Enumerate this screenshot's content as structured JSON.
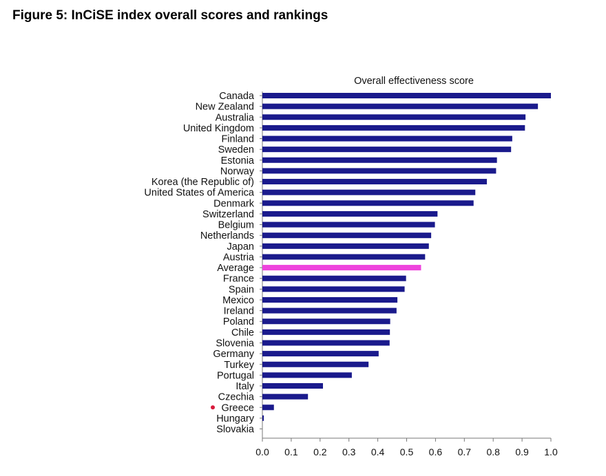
{
  "figure_title": "Figure 5: InCiSE index overall scores and rankings",
  "chart_data": {
    "type": "bar",
    "orientation": "horizontal",
    "title": "Overall effectiveness score",
    "xlabel": "",
    "ylabel": "",
    "xlim": [
      0,
      1.0
    ],
    "xticks": [
      "0.0",
      "0.1",
      "0.2",
      "0.3",
      "0.4",
      "0.5",
      "0.6",
      "0.7",
      "0.8",
      "0.9",
      "1.0"
    ],
    "grid": false,
    "categories": [
      "Canada",
      "New Zealand",
      "Australia",
      "United Kingdom",
      "Finland",
      "Sweden",
      "Estonia",
      "Norway",
      "Korea (the Republic of)",
      "United States of America",
      "Denmark",
      "Switzerland",
      "Belgium",
      "Netherlands",
      "Japan",
      "Austria",
      "Average",
      "France",
      "Spain",
      "Mexico",
      "Ireland",
      "Poland",
      "Chile",
      "Slovenia",
      "Germany",
      "Turkey",
      "Portugal",
      "Italy",
      "Czechia",
      "Greece",
      "Hungary",
      "Slovakia"
    ],
    "values": [
      1.0,
      0.955,
      0.912,
      0.91,
      0.866,
      0.862,
      0.813,
      0.81,
      0.778,
      0.738,
      0.732,
      0.607,
      0.598,
      0.585,
      0.577,
      0.564,
      0.55,
      0.498,
      0.493,
      0.468,
      0.465,
      0.443,
      0.442,
      0.441,
      0.403,
      0.368,
      0.31,
      0.21,
      0.158,
      0.04,
      0.005,
      0.0
    ],
    "colors": {
      "bar": "#1a1a8c",
      "average": "#ee44dd",
      "greece_marker": "#d81b3c"
    },
    "highlight": {
      "Average": "average"
    },
    "marker": {
      "Greece": "dot"
    }
  }
}
